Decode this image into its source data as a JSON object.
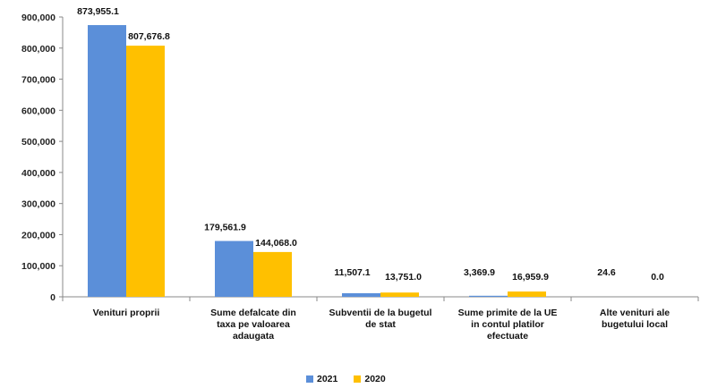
{
  "chart_data": {
    "type": "bar",
    "title": "",
    "xlabel": "",
    "ylabel": "",
    "ylim": [
      0,
      900000
    ],
    "y_ticks": [
      "0",
      "100,000",
      "200,000",
      "300,000",
      "400,000",
      "500,000",
      "600,000",
      "700,000",
      "800,000",
      "900,000"
    ],
    "categories": [
      [
        "Venituri proprii"
      ],
      [
        "Sume defalcate din",
        "taxa pe valoarea",
        "adaugata"
      ],
      [
        "Subventii de la bugetul",
        "de stat"
      ],
      [
        "Sume primite de la UE",
        "in contul platilor",
        "efectuate"
      ],
      [
        "Alte venituri ale",
        "bugetului local"
      ]
    ],
    "series": [
      {
        "name": "2021",
        "color": "#5B8FD9",
        "values": [
          873955.1,
          179561.9,
          11507.1,
          3369.9,
          24.6
        ],
        "labels": [
          "873,955.1",
          "179,561.9",
          "11,507.1",
          "3,369.9",
          "24.6"
        ]
      },
      {
        "name": "2020",
        "color": "#FFC000",
        "values": [
          807676.8,
          144068.0,
          13751.0,
          16959.9,
          0.0
        ],
        "labels": [
          "807,676.8",
          "144,068.0",
          "13,751.0",
          "16,959.9",
          "0.0"
        ]
      }
    ],
    "grid": false,
    "legend_position": "bottom"
  }
}
